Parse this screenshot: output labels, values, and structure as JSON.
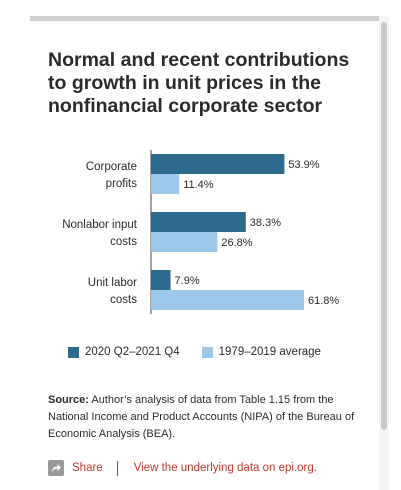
{
  "title": "Normal and recent contributions to growth in unit prices in the nonfinancial corporate sector",
  "colors": {
    "series_recent": "#2d6a8e",
    "series_avg": "#9ec8ea",
    "text": "#2b2b2b",
    "link": "#c0392b"
  },
  "chart_data": {
    "type": "bar",
    "orientation": "horizontal",
    "categories": [
      [
        "Corporate",
        "profits"
      ],
      [
        "Nonlabor input",
        "costs"
      ],
      [
        "Unit labor",
        "costs"
      ]
    ],
    "series": [
      {
        "name": "2020 Q2–2021 Q4",
        "values": [
          53.9,
          38.3,
          7.9
        ],
        "labels": [
          "53.9%",
          "38.3%",
          "7.9%"
        ]
      },
      {
        "name": "1979–2019 average",
        "values": [
          11.4,
          26.8,
          61.8
        ],
        "labels": [
          "11.4%",
          "26.8%",
          "61.8%"
        ]
      }
    ],
    "xlim": [
      0,
      100
    ],
    "grid": false,
    "legend": "bottom"
  },
  "source": {
    "label": "Source:",
    "text": " Author’s analysis of data from Table 1.15 from the National Income and Product Accounts (NIPA) of the Bureau of Economic Analysis (BEA)."
  },
  "footer": {
    "share_label": "Share",
    "data_link_label": "View the underlying data on epi.org."
  },
  "icons": {
    "share": "share-icon"
  }
}
